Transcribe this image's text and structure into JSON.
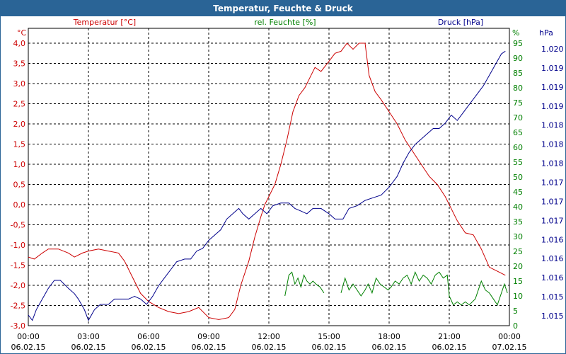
{
  "window": {
    "title": "Temperatur, Feuchte & Druck"
  },
  "colors": {
    "temperature": "#cc0000",
    "humidity": "#008000",
    "pressure": "#00008b",
    "header": "#2a6496",
    "grid": "#000000"
  },
  "chart_data": {
    "type": "line",
    "title": "Temperatur, Feuchte & Druck",
    "legend": {
      "temperature": "Temperatur [°C]",
      "humidity": "rel. Feuchte [%]",
      "pressure": "Druck [hPa]"
    },
    "axes": {
      "left": {
        "unit": "°C",
        "range": [
          -3.0,
          4.0
        ],
        "ticks": [
          "4,0",
          "3,5",
          "3,0",
          "2,5",
          "2,0",
          "1,5",
          "1,0",
          "0,5",
          "0,0",
          "-0,5",
          "-1,0",
          "-1,5",
          "-2,0",
          "-2,5",
          "-3,0"
        ]
      },
      "mid": {
        "unit": "%",
        "range": [
          0,
          95
        ],
        "ticks": [
          "95",
          "90",
          "85",
          "80",
          "75",
          "70",
          "65",
          "60",
          "55",
          "50",
          "45",
          "40",
          "35",
          "30",
          "25",
          "20",
          "15",
          "10",
          "5",
          "0"
        ]
      },
      "right": {
        "unit": "hPa",
        "range": [
          1014.85,
          1020.15
        ],
        "ticks": [
          "1.020",
          "1.019",
          "1.019",
          "1.019",
          "1.018",
          "1.018",
          "1.018",
          "1.017",
          "1.017",
          "1.017",
          "1.016",
          "1.016",
          "1.016",
          "1.015",
          "1.015"
        ]
      },
      "x": {
        "range_hours": [
          0,
          24
        ],
        "ticks": [
          {
            "time": "00:00",
            "date": "06.02.15"
          },
          {
            "time": "03:00",
            "date": "06.02.15"
          },
          {
            "time": "06:00",
            "date": "06.02.15"
          },
          {
            "time": "09:00",
            "date": "06.02.15"
          },
          {
            "time": "12:00",
            "date": "06.02.15"
          },
          {
            "time": "15:00",
            "date": "06.02.15"
          },
          {
            "time": "18:00",
            "date": "06.02.15"
          },
          {
            "time": "21:00",
            "date": "06.02.15"
          },
          {
            "time": "00:00",
            "date": "07.02.15"
          }
        ]
      }
    },
    "series": [
      {
        "name": "Temperatur [°C]",
        "axis": "left",
        "points": [
          [
            0,
            -1.3
          ],
          [
            0.3,
            -1.35
          ],
          [
            0.7,
            -1.2
          ],
          [
            1,
            -1.1
          ],
          [
            1.5,
            -1.1
          ],
          [
            2,
            -1.2
          ],
          [
            2.3,
            -1.3
          ],
          [
            2.7,
            -1.2
          ],
          [
            3,
            -1.15
          ],
          [
            3.5,
            -1.1
          ],
          [
            4,
            -1.15
          ],
          [
            4.5,
            -1.2
          ],
          [
            4.8,
            -1.4
          ],
          [
            5.2,
            -1.8
          ],
          [
            5.6,
            -2.2
          ],
          [
            6,
            -2.4
          ],
          [
            6.5,
            -2.55
          ],
          [
            7,
            -2.65
          ],
          [
            7.5,
            -2.7
          ],
          [
            8,
            -2.65
          ],
          [
            8.5,
            -2.55
          ],
          [
            9,
            -2.8
          ],
          [
            9.5,
            -2.85
          ],
          [
            10,
            -2.8
          ],
          [
            10.3,
            -2.6
          ],
          [
            10.6,
            -2.0
          ],
          [
            11,
            -1.4
          ],
          [
            11.3,
            -0.8
          ],
          [
            11.6,
            -0.3
          ],
          [
            11.8,
            0.0
          ],
          [
            12,
            0.2
          ],
          [
            12.3,
            0.5
          ],
          [
            12.6,
            1.0
          ],
          [
            12.9,
            1.6
          ],
          [
            13.2,
            2.3
          ],
          [
            13.5,
            2.7
          ],
          [
            13.8,
            2.9
          ],
          [
            14,
            3.1
          ],
          [
            14.3,
            3.4
          ],
          [
            14.6,
            3.3
          ],
          [
            15,
            3.55
          ],
          [
            15.3,
            3.75
          ],
          [
            15.6,
            3.8
          ],
          [
            15.9,
            4.0
          ],
          [
            16.2,
            3.85
          ],
          [
            16.5,
            4.0
          ],
          [
            16.8,
            4.0
          ],
          [
            17,
            3.2
          ],
          [
            17.3,
            2.8
          ],
          [
            17.6,
            2.6
          ],
          [
            18,
            2.3
          ],
          [
            18.4,
            2.0
          ],
          [
            18.8,
            1.6
          ],
          [
            19.2,
            1.3
          ],
          [
            19.6,
            1.0
          ],
          [
            20,
            0.7
          ],
          [
            20.4,
            0.5
          ],
          [
            20.8,
            0.2
          ],
          [
            21.1,
            -0.1
          ],
          [
            21.4,
            -0.4
          ],
          [
            21.8,
            -0.7
          ],
          [
            22.2,
            -0.75
          ],
          [
            22.6,
            -1.1
          ],
          [
            23,
            -1.55
          ],
          [
            23.4,
            -1.65
          ],
          [
            23.8,
            -1.75
          ]
        ]
      },
      {
        "name": "rel. Feuchte [%]",
        "axis": "mid",
        "segments": [
          [
            [
              12.8,
              10
            ],
            [
              13.0,
              17
            ],
            [
              13.15,
              18
            ],
            [
              13.3,
              14
            ],
            [
              13.45,
              16
            ],
            [
              13.6,
              13
            ],
            [
              13.75,
              17
            ],
            [
              13.9,
              15
            ],
            [
              14.05,
              14
            ],
            [
              14.2,
              15
            ],
            [
              14.35,
              14
            ],
            [
              14.55,
              13
            ],
            [
              14.75,
              11
            ]
          ],
          [
            [
              15.6,
              11
            ],
            [
              15.8,
              16
            ],
            [
              16.0,
              12
            ],
            [
              16.2,
              14
            ],
            [
              16.4,
              12
            ],
            [
              16.6,
              10
            ],
            [
              16.8,
              12
            ],
            [
              16.95,
              14
            ],
            [
              17.15,
              11
            ],
            [
              17.35,
              16
            ],
            [
              17.55,
              14
            ],
            [
              17.75,
              13
            ],
            [
              17.95,
              12
            ],
            [
              18.1,
              13
            ],
            [
              18.3,
              15
            ],
            [
              18.5,
              14
            ],
            [
              18.7,
              16
            ],
            [
              18.9,
              17
            ],
            [
              19.1,
              14
            ],
            [
              19.3,
              18
            ],
            [
              19.5,
              15
            ],
            [
              19.7,
              17
            ],
            [
              19.9,
              16
            ],
            [
              20.1,
              14
            ],
            [
              20.3,
              17
            ],
            [
              20.5,
              18
            ],
            [
              20.7,
              16
            ],
            [
              20.9,
              17
            ],
            [
              21.0,
              10
            ],
            [
              21.2,
              7
            ],
            [
              21.4,
              8
            ],
            [
              21.6,
              7
            ],
            [
              21.8,
              8
            ],
            [
              22.0,
              7
            ],
            [
              22.3,
              9
            ],
            [
              22.6,
              15
            ],
            [
              22.8,
              12
            ],
            [
              23.0,
              11
            ],
            [
              23.2,
              9
            ],
            [
              23.4,
              7
            ],
            [
              23.6,
              11
            ],
            [
              23.75,
              14
            ],
            [
              23.9,
              11
            ]
          ]
        ]
      },
      {
        "name": "Druck [hPa]",
        "axis": "right",
        "points": [
          [
            0,
            1015.05
          ],
          [
            0.2,
            1014.95
          ],
          [
            0.4,
            1015.15
          ],
          [
            0.7,
            1015.35
          ],
          [
            1,
            1015.55
          ],
          [
            1.3,
            1015.7
          ],
          [
            1.6,
            1015.7
          ],
          [
            2,
            1015.55
          ],
          [
            2.3,
            1015.45
          ],
          [
            2.5,
            1015.35
          ],
          [
            2.8,
            1015.15
          ],
          [
            3,
            1014.95
          ],
          [
            3.3,
            1015.15
          ],
          [
            3.6,
            1015.25
          ],
          [
            4,
            1015.25
          ],
          [
            4.3,
            1015.35
          ],
          [
            4.6,
            1015.35
          ],
          [
            5,
            1015.35
          ],
          [
            5.3,
            1015.4
          ],
          [
            5.6,
            1015.35
          ],
          [
            5.9,
            1015.25
          ],
          [
            6.2,
            1015.4
          ],
          [
            6.5,
            1015.6
          ],
          [
            6.8,
            1015.75
          ],
          [
            7.1,
            1015.9
          ],
          [
            7.4,
            1016.05
          ],
          [
            7.8,
            1016.1
          ],
          [
            8.1,
            1016.1
          ],
          [
            8.4,
            1016.25
          ],
          [
            8.7,
            1016.3
          ],
          [
            9,
            1016.45
          ],
          [
            9.3,
            1016.55
          ],
          [
            9.6,
            1016.65
          ],
          [
            9.9,
            1016.85
          ],
          [
            10.2,
            1016.95
          ],
          [
            10.5,
            1017.05
          ],
          [
            10.7,
            1016.95
          ],
          [
            11,
            1016.85
          ],
          [
            11.3,
            1016.95
          ],
          [
            11.6,
            1017.05
          ],
          [
            11.9,
            1016.95
          ],
          [
            12.2,
            1017.1
          ],
          [
            12.6,
            1017.15
          ],
          [
            13,
            1017.15
          ],
          [
            13.3,
            1017.05
          ],
          [
            13.6,
            1017.0
          ],
          [
            13.9,
            1016.95
          ],
          [
            14.2,
            1017.05
          ],
          [
            14.6,
            1017.05
          ],
          [
            15,
            1016.95
          ],
          [
            15.3,
            1016.85
          ],
          [
            15.7,
            1016.85
          ],
          [
            16,
            1017.05
          ],
          [
            16.4,
            1017.1
          ],
          [
            16.8,
            1017.2
          ],
          [
            17.2,
            1017.25
          ],
          [
            17.6,
            1017.3
          ],
          [
            18,
            1017.45
          ],
          [
            18.4,
            1017.65
          ],
          [
            18.7,
            1017.9
          ],
          [
            19,
            1018.1
          ],
          [
            19.3,
            1018.25
          ],
          [
            19.6,
            1018.35
          ],
          [
            19.9,
            1018.45
          ],
          [
            20.2,
            1018.55
          ],
          [
            20.5,
            1018.55
          ],
          [
            20.8,
            1018.65
          ],
          [
            21.1,
            1018.8
          ],
          [
            21.4,
            1018.7
          ],
          [
            21.7,
            1018.85
          ],
          [
            22,
            1019.0
          ],
          [
            22.3,
            1019.15
          ],
          [
            22.7,
            1019.35
          ],
          [
            23,
            1019.55
          ],
          [
            23.3,
            1019.75
          ],
          [
            23.6,
            1019.95
          ],
          [
            23.8,
            1020.0
          ]
        ]
      }
    ]
  }
}
